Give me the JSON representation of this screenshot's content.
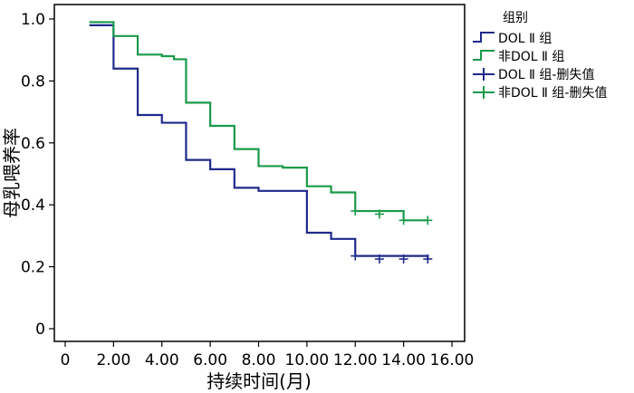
{
  "chart_data": {
    "type": "line",
    "title": "",
    "xlabel": "持续时间(月)",
    "ylabel": "母乳喂养率",
    "xlim": [
      -0.6,
      16.0
    ],
    "ylim": [
      0,
      1.0
    ],
    "x_ticks": [
      0,
      2,
      4,
      6,
      8,
      10,
      12,
      14,
      16
    ],
    "x_tick_labels": [
      "0",
      "2.00",
      "4.00",
      "6.00",
      "8.00",
      "10.00",
      "12.00",
      "14.00",
      "16.00"
    ],
    "y_ticks": [
      0,
      0.2,
      0.4,
      0.6,
      0.8,
      1.0
    ],
    "y_tick_labels": [
      "0",
      "0.2",
      "0.4",
      "0.6",
      "0.8",
      "1.0"
    ],
    "grid": false,
    "legend_title": "组别",
    "legend_position": "top-right outside",
    "series": [
      {
        "name": "DOL Ⅱ 组",
        "color": "#1f2a8a",
        "step": true,
        "x": [
          1,
          2,
          3,
          4,
          5,
          6,
          7,
          8,
          10,
          11,
          12,
          15
        ],
        "y": [
          0.98,
          0.84,
          0.69,
          0.665,
          0.545,
          0.515,
          0.455,
          0.445,
          0.31,
          0.29,
          0.235,
          0.225
        ],
        "censored_x": [
          12,
          13,
          14,
          15
        ],
        "censored_y": [
          0.235,
          0.225,
          0.225,
          0.225
        ]
      },
      {
        "name": "非DOL Ⅱ 组",
        "color": "#1a9a4a",
        "step": true,
        "x": [
          1,
          2,
          3,
          4,
          4.5,
          5,
          6,
          7,
          8,
          9,
          10,
          11,
          12,
          14,
          15
        ],
        "y": [
          0.99,
          0.945,
          0.885,
          0.88,
          0.87,
          0.73,
          0.655,
          0.58,
          0.525,
          0.52,
          0.46,
          0.44,
          0.38,
          0.35,
          0.35
        ],
        "censored_x": [
          12,
          13,
          14,
          15
        ],
        "censored_y": [
          0.38,
          0.37,
          0.35,
          0.35
        ]
      }
    ],
    "legend_entries": [
      "DOL Ⅱ 组",
      "非DOL Ⅱ 组",
      "DOL Ⅱ 组-删失值",
      "非DOL Ⅱ 组-删失值"
    ]
  }
}
